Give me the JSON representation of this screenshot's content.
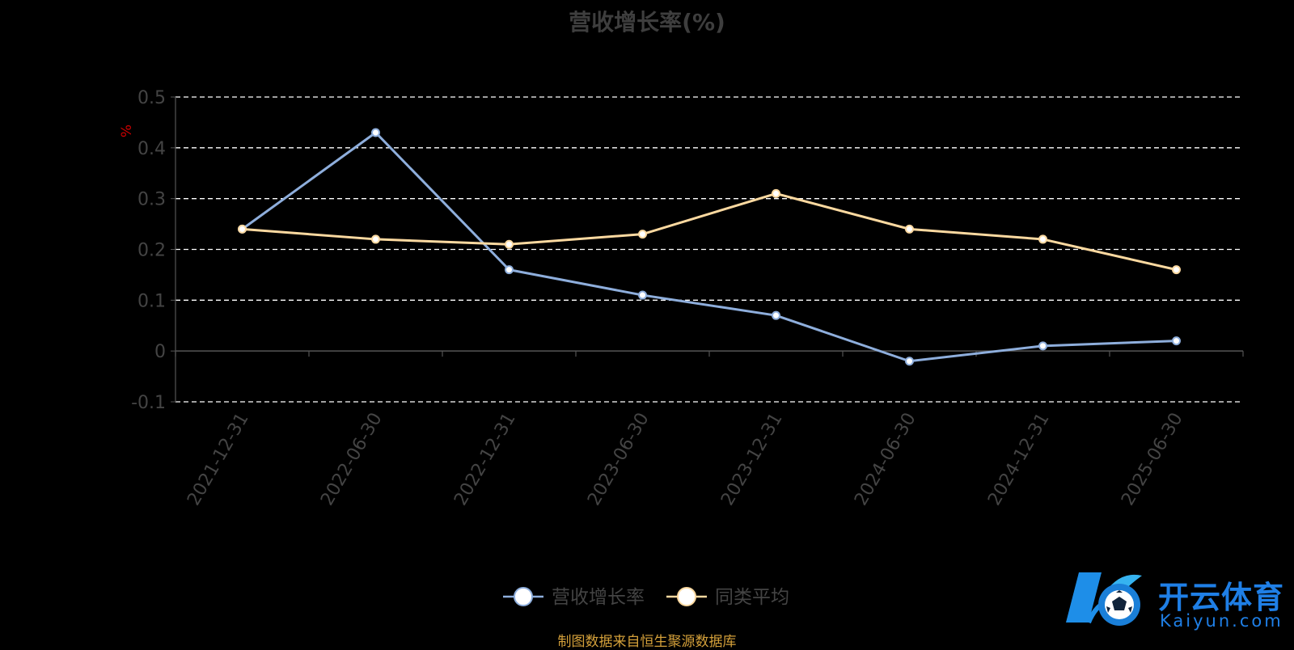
{
  "chart_data": {
    "type": "line",
    "title": "营收增长率(%)",
    "ylabel": "%",
    "xlabel": "",
    "categories": [
      "2021-12-31",
      "2022-06-30",
      "2022-12-31",
      "2023-06-30",
      "2023-12-31",
      "2024-06-30",
      "2024-12-31",
      "2025-06-30"
    ],
    "yticks": [
      "0.5",
      "0.4",
      "0.3",
      "0.2",
      "0.1",
      "0",
      "-0.1"
    ],
    "ylim": [
      -0.1,
      0.5
    ],
    "grid": true,
    "legend_position": "bottom",
    "series": [
      {
        "name": "营收增长率",
        "color": "#8eaedc",
        "values": [
          0.24,
          0.43,
          0.16,
          0.11,
          0.07,
          -0.02,
          0.01,
          0.02
        ]
      },
      {
        "name": "同类平均",
        "color": "#fcd9a0",
        "values": [
          0.24,
          0.22,
          0.21,
          0.23,
          0.31,
          0.24,
          0.22,
          0.16
        ]
      }
    ]
  },
  "source_note": "制图数据来自恒生聚源数据库",
  "logo": {
    "cn": "开云体育",
    "en": "Kaiyun.com"
  },
  "colors": {
    "background": "#000000",
    "grid": "#ffffff",
    "axis": "#555555",
    "tick_text": "#444444",
    "ylabel": "#cc0000"
  }
}
